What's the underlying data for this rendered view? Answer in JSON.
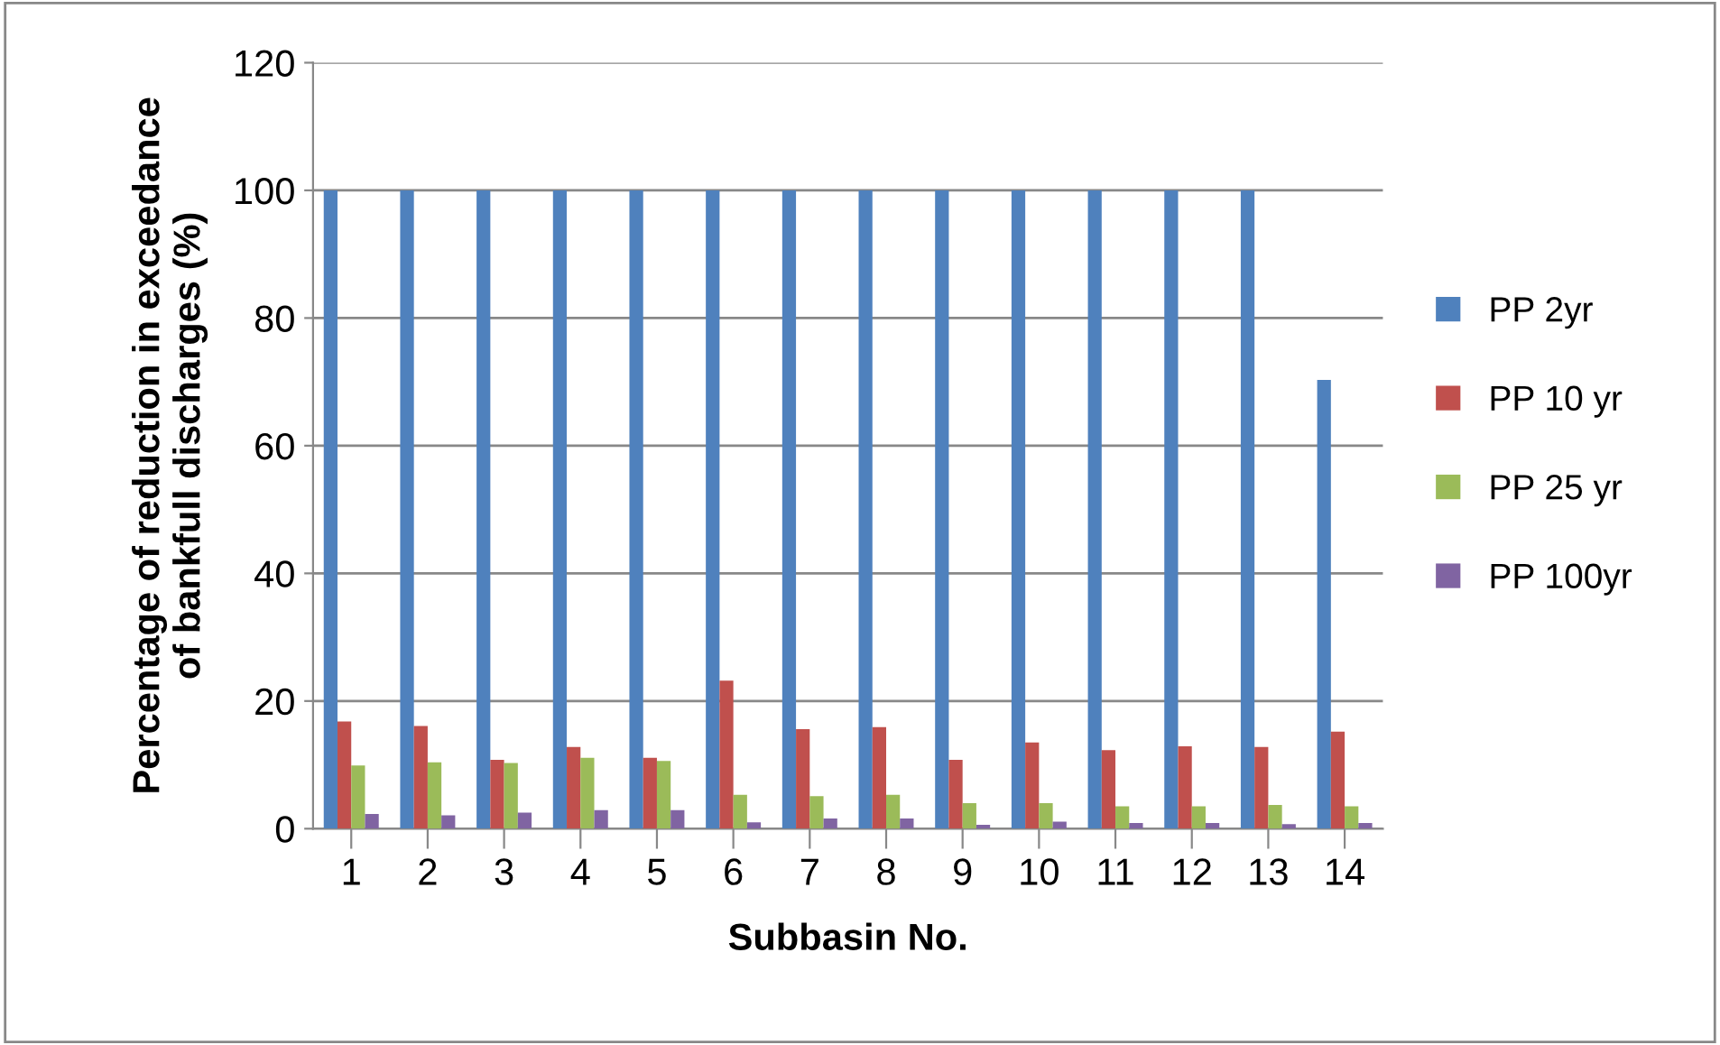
{
  "chart_data": {
    "type": "bar",
    "xlabel": "Subbasin No.",
    "ylabel": "Percentage of reduction in exceedance\nof bankfull discharges (%)",
    "categories": [
      "1",
      "2",
      "3",
      "4",
      "5",
      "6",
      "7",
      "8",
      "9",
      "10",
      "11",
      "12",
      "13",
      "14"
    ],
    "series": [
      {
        "name": "PP 2yr",
        "color": "#4f81bd",
        "values": [
          100,
          100,
          100,
          100,
          100,
          100,
          100,
          100,
          100,
          100,
          100,
          100,
          100,
          70.3
        ]
      },
      {
        "name": "PP 10 yr",
        "color": "#c0504d",
        "values": [
          16.8,
          16.1,
          10.8,
          12.8,
          11.1,
          23.2,
          15.6,
          15.9,
          10.8,
          13.5,
          12.3,
          12.9,
          12.8,
          15.2
        ]
      },
      {
        "name": "PP 25 yr",
        "color": "#9bbb59",
        "values": [
          9.9,
          10.4,
          10.3,
          11.1,
          10.6,
          5.3,
          5.1,
          5.3,
          4.0,
          4.0,
          3.5,
          3.5,
          3.7,
          3.5
        ]
      },
      {
        "name": "PP 100yr",
        "color": "#8064a2",
        "values": [
          2.3,
          2.1,
          2.5,
          2.9,
          2.9,
          1.0,
          1.6,
          1.6,
          0.6,
          1.1,
          0.9,
          0.9,
          0.7,
          0.9
        ]
      }
    ],
    "ylim": [
      0,
      120
    ],
    "yticks": [
      0,
      20,
      40,
      60,
      80,
      100,
      120
    ],
    "grid": "y",
    "legend": "right"
  }
}
